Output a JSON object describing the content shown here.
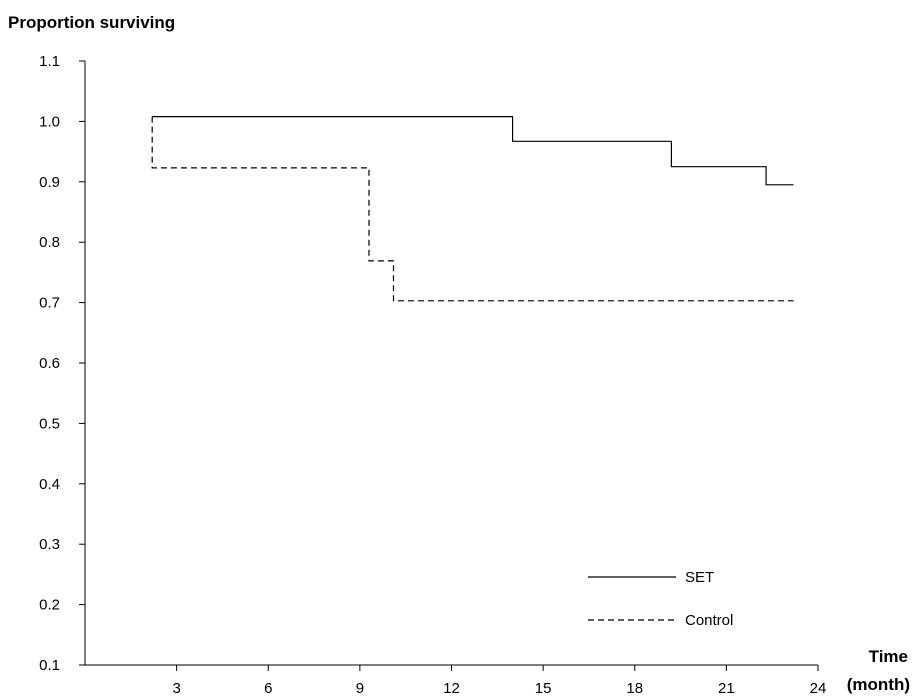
{
  "chart_data": {
    "type": "line",
    "step": true,
    "ylabel": "Proportion surviving",
    "xlabel_line1": "Time",
    "xlabel_line2": "(month)",
    "xlim": [
      0,
      24
    ],
    "ylim": [
      0.1,
      1.1
    ],
    "xticks": [
      3,
      6,
      9,
      12,
      15,
      18,
      21,
      24
    ],
    "yticks": [
      "0.1",
      "0.2",
      "0.3",
      "0.4",
      "0.5",
      "0.6",
      "0.7",
      "0.8",
      "0.9",
      "1.0",
      "1.1"
    ],
    "grid": false,
    "legend_position": "bottom-right",
    "series": [
      {
        "name": "SET",
        "style": "solid",
        "color": "#000000",
        "x": [
          2.2,
          14.0,
          14.0,
          19.2,
          19.2,
          22.3,
          22.3,
          23.2
        ],
        "y": [
          1.008,
          1.008,
          0.967,
          0.967,
          0.925,
          0.925,
          0.895,
          0.895
        ]
      },
      {
        "name": "Control",
        "style": "dashed",
        "color": "#000000",
        "x": [
          2.2,
          2.2,
          9.3,
          9.3,
          10.1,
          10.1,
          23.2
        ],
        "y": [
          1.008,
          0.923,
          0.923,
          0.769,
          0.769,
          0.703,
          0.703
        ]
      }
    ]
  }
}
